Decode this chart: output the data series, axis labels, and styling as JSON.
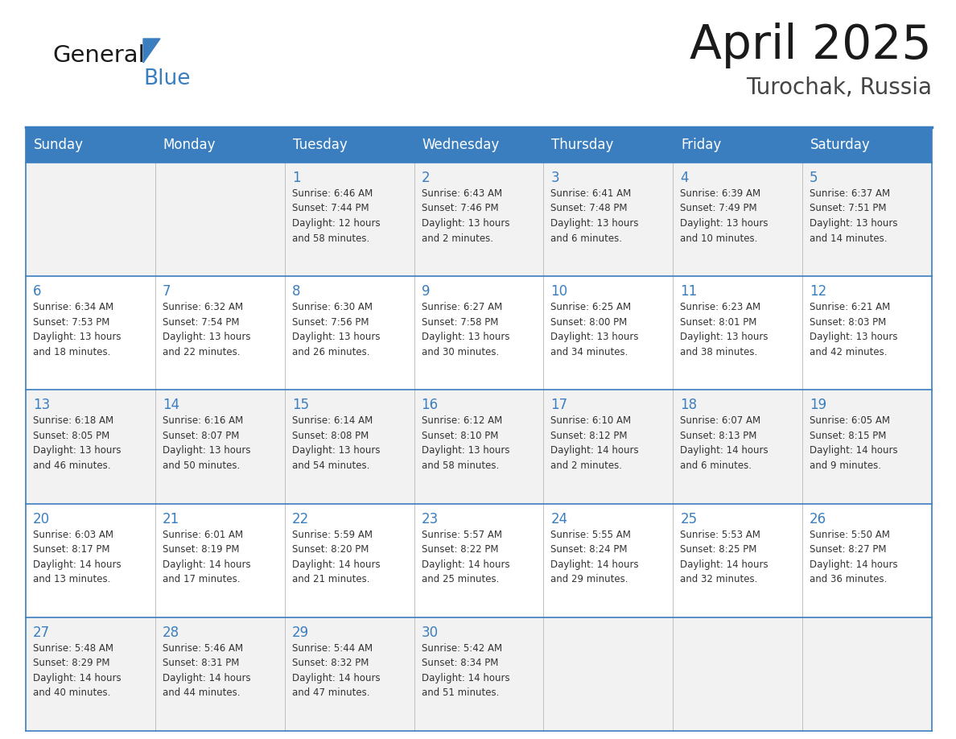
{
  "title": "April 2025",
  "subtitle": "Turochak, Russia",
  "days_of_week": [
    "Sunday",
    "Monday",
    "Tuesday",
    "Wednesday",
    "Thursday",
    "Friday",
    "Saturday"
  ],
  "header_bg": "#3a7ebf",
  "header_text_color": "#ffffff",
  "row_bg_light": "#f2f2f2",
  "row_bg_white": "#ffffff",
  "cell_border_color": "#3a7ebf",
  "title_color": "#1a1a1a",
  "subtitle_color": "#444444",
  "day_number_color": "#3a7ebf",
  "cell_text_color": "#333333",
  "logo_general_color": "#1a1a1a",
  "logo_blue_color": "#3a7ebf",
  "logo_triangle_color": "#3a7ebf",
  "weeks": [
    [
      {
        "day": null,
        "info": null
      },
      {
        "day": null,
        "info": null
      },
      {
        "day": 1,
        "info": "Sunrise: 6:46 AM\nSunset: 7:44 PM\nDaylight: 12 hours\nand 58 minutes."
      },
      {
        "day": 2,
        "info": "Sunrise: 6:43 AM\nSunset: 7:46 PM\nDaylight: 13 hours\nand 2 minutes."
      },
      {
        "day": 3,
        "info": "Sunrise: 6:41 AM\nSunset: 7:48 PM\nDaylight: 13 hours\nand 6 minutes."
      },
      {
        "day": 4,
        "info": "Sunrise: 6:39 AM\nSunset: 7:49 PM\nDaylight: 13 hours\nand 10 minutes."
      },
      {
        "day": 5,
        "info": "Sunrise: 6:37 AM\nSunset: 7:51 PM\nDaylight: 13 hours\nand 14 minutes."
      }
    ],
    [
      {
        "day": 6,
        "info": "Sunrise: 6:34 AM\nSunset: 7:53 PM\nDaylight: 13 hours\nand 18 minutes."
      },
      {
        "day": 7,
        "info": "Sunrise: 6:32 AM\nSunset: 7:54 PM\nDaylight: 13 hours\nand 22 minutes."
      },
      {
        "day": 8,
        "info": "Sunrise: 6:30 AM\nSunset: 7:56 PM\nDaylight: 13 hours\nand 26 minutes."
      },
      {
        "day": 9,
        "info": "Sunrise: 6:27 AM\nSunset: 7:58 PM\nDaylight: 13 hours\nand 30 minutes."
      },
      {
        "day": 10,
        "info": "Sunrise: 6:25 AM\nSunset: 8:00 PM\nDaylight: 13 hours\nand 34 minutes."
      },
      {
        "day": 11,
        "info": "Sunrise: 6:23 AM\nSunset: 8:01 PM\nDaylight: 13 hours\nand 38 minutes."
      },
      {
        "day": 12,
        "info": "Sunrise: 6:21 AM\nSunset: 8:03 PM\nDaylight: 13 hours\nand 42 minutes."
      }
    ],
    [
      {
        "day": 13,
        "info": "Sunrise: 6:18 AM\nSunset: 8:05 PM\nDaylight: 13 hours\nand 46 minutes."
      },
      {
        "day": 14,
        "info": "Sunrise: 6:16 AM\nSunset: 8:07 PM\nDaylight: 13 hours\nand 50 minutes."
      },
      {
        "day": 15,
        "info": "Sunrise: 6:14 AM\nSunset: 8:08 PM\nDaylight: 13 hours\nand 54 minutes."
      },
      {
        "day": 16,
        "info": "Sunrise: 6:12 AM\nSunset: 8:10 PM\nDaylight: 13 hours\nand 58 minutes."
      },
      {
        "day": 17,
        "info": "Sunrise: 6:10 AM\nSunset: 8:12 PM\nDaylight: 14 hours\nand 2 minutes."
      },
      {
        "day": 18,
        "info": "Sunrise: 6:07 AM\nSunset: 8:13 PM\nDaylight: 14 hours\nand 6 minutes."
      },
      {
        "day": 19,
        "info": "Sunrise: 6:05 AM\nSunset: 8:15 PM\nDaylight: 14 hours\nand 9 minutes."
      }
    ],
    [
      {
        "day": 20,
        "info": "Sunrise: 6:03 AM\nSunset: 8:17 PM\nDaylight: 14 hours\nand 13 minutes."
      },
      {
        "day": 21,
        "info": "Sunrise: 6:01 AM\nSunset: 8:19 PM\nDaylight: 14 hours\nand 17 minutes."
      },
      {
        "day": 22,
        "info": "Sunrise: 5:59 AM\nSunset: 8:20 PM\nDaylight: 14 hours\nand 21 minutes."
      },
      {
        "day": 23,
        "info": "Sunrise: 5:57 AM\nSunset: 8:22 PM\nDaylight: 14 hours\nand 25 minutes."
      },
      {
        "day": 24,
        "info": "Sunrise: 5:55 AM\nSunset: 8:24 PM\nDaylight: 14 hours\nand 29 minutes."
      },
      {
        "day": 25,
        "info": "Sunrise: 5:53 AM\nSunset: 8:25 PM\nDaylight: 14 hours\nand 32 minutes."
      },
      {
        "day": 26,
        "info": "Sunrise: 5:50 AM\nSunset: 8:27 PM\nDaylight: 14 hours\nand 36 minutes."
      }
    ],
    [
      {
        "day": 27,
        "info": "Sunrise: 5:48 AM\nSunset: 8:29 PM\nDaylight: 14 hours\nand 40 minutes."
      },
      {
        "day": 28,
        "info": "Sunrise: 5:46 AM\nSunset: 8:31 PM\nDaylight: 14 hours\nand 44 minutes."
      },
      {
        "day": 29,
        "info": "Sunrise: 5:44 AM\nSunset: 8:32 PM\nDaylight: 14 hours\nand 47 minutes."
      },
      {
        "day": 30,
        "info": "Sunrise: 5:42 AM\nSunset: 8:34 PM\nDaylight: 14 hours\nand 51 minutes."
      },
      {
        "day": null,
        "info": null
      },
      {
        "day": null,
        "info": null
      },
      {
        "day": null,
        "info": null
      }
    ]
  ]
}
